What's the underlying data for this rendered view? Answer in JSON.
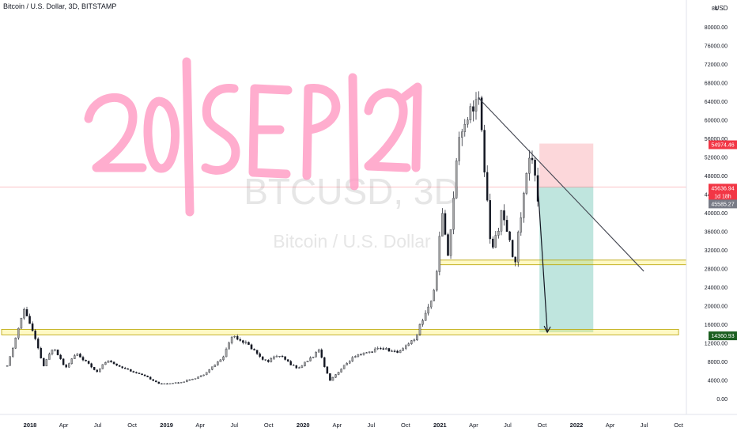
{
  "header": {
    "title": "Bitcoin / U.S. Dollar, 3D, BITSTAMP"
  },
  "watermark": {
    "symbol": "BTCUSD, 3D",
    "name": "Bitcoin / U.S. Dollar"
  },
  "annotation": {
    "handwritten_date": "20|SEP|21"
  },
  "price_scale": {
    "currency": "USD",
    "value_labels": [
      {
        "id": "current",
        "text": "45636.94",
        "color": "#f23645"
      },
      {
        "id": "countdown",
        "text": "1d 18h",
        "color": "#f23645"
      },
      {
        "id": "last",
        "text": "45585.27",
        "color": "#787b86"
      },
      {
        "id": "stop",
        "text": "54974.46",
        "color": "#f23645"
      },
      {
        "id": "target",
        "text": "14360.93",
        "color": "#1b5e20"
      }
    ]
  },
  "chart_data": {
    "type": "candlestick",
    "title": "Bitcoin / U.S. Dollar, 3D, BITSTAMP",
    "ylim": [
      -4000,
      84000
    ],
    "y_ticks": [
      "80000.00",
      "76000.00",
      "72000.00",
      "68000.00",
      "64000.00",
      "60000.00",
      "56000.00",
      "52000.00",
      "48000.00",
      "44000.00",
      "40000.00",
      "36000.00",
      "32000.00",
      "28000.00",
      "24000.00",
      "20000.00",
      "16000.00",
      "12000.00",
      "8000.00",
      "4000.00",
      "0.00",
      "-4000.00"
    ],
    "x_ticks": [
      "2018",
      "Apr",
      "Jul",
      "Oct",
      "2019",
      "Apr",
      "Jul",
      "Oct",
      "2020",
      "Apr",
      "Jul",
      "Oct",
      "2021",
      "Apr",
      "Jul",
      "Oct",
      "2022",
      "Apr",
      "Jul",
      "Oct"
    ],
    "grid": false,
    "series": [
      {
        "price_path": [
          [
            "2017-11-01",
            7000
          ],
          [
            "2017-12-17",
            19500
          ],
          [
            "2018-01-10",
            14000
          ],
          [
            "2018-02-06",
            7000
          ],
          [
            "2018-03-05",
            11400
          ],
          [
            "2018-04-05",
            6800
          ],
          [
            "2018-05-05",
            9800
          ],
          [
            "2018-06-28",
            5900
          ],
          [
            "2018-07-25",
            8200
          ],
          [
            "2018-09-15",
            6500
          ],
          [
            "2018-11-20",
            4300
          ],
          [
            "2018-12-15",
            3200
          ],
          [
            "2019-02-08",
            3600
          ],
          [
            "2019-04-05",
            5000
          ],
          [
            "2019-05-30",
            8700
          ],
          [
            "2019-06-26",
            13800
          ],
          [
            "2019-08-05",
            11800
          ],
          [
            "2019-09-25",
            8000
          ],
          [
            "2019-10-26",
            9500
          ],
          [
            "2019-12-18",
            6500
          ],
          [
            "2020-02-13",
            10400
          ],
          [
            "2020-03-12",
            4000
          ],
          [
            "2020-05-10",
            8700
          ],
          [
            "2020-07-25",
            11000
          ],
          [
            "2020-09-08",
            10000
          ],
          [
            "2020-10-25",
            13000
          ],
          [
            "2020-12-17",
            23000
          ],
          [
            "2021-01-08",
            41000
          ],
          [
            "2021-01-22",
            30000
          ],
          [
            "2021-02-21",
            57000
          ],
          [
            "2021-03-13",
            61000
          ],
          [
            "2021-04-14",
            64800
          ],
          [
            "2021-05-19",
            31000
          ],
          [
            "2021-06-14",
            40000
          ],
          [
            "2021-07-20",
            29500
          ],
          [
            "2021-08-23",
            50000
          ],
          [
            "2021-09-07",
            52700
          ],
          [
            "2021-09-21",
            42000
          ],
          [
            "2021-09-24",
            45586
          ]
        ]
      }
    ],
    "annotations": {
      "trendline": {
        "start": [
          "2021-04-14",
          64800
        ],
        "end": [
          "2022-06-30",
          27500
        ]
      },
      "support_zones": [
        {
          "x_start": "2021-01-01",
          "x_end": "2022-10-31",
          "y_low": 28900,
          "y_high": 29900
        },
        {
          "x_start": "2017-11-01",
          "x_end": "2022-10-01",
          "y_low": 13800,
          "y_high": 15000
        }
      ],
      "short_position": {
        "x_start": "2021-09-24",
        "x_end": "2022-02-15",
        "entry": 45636.94,
        "stop": 54974.46,
        "target": 14360.93
      },
      "projection_arrow": {
        "start": [
          "2021-09-18",
          48000
        ],
        "end": [
          "2021-10-15",
          14360.93
        ]
      }
    }
  }
}
